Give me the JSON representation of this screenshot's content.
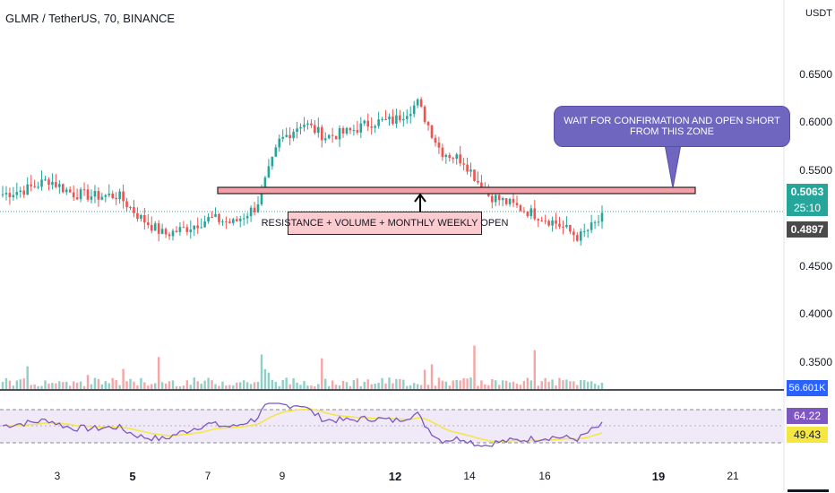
{
  "header": {
    "symbol_title": "GLMR / TetherUS, 70, BINANCE"
  },
  "price_axis": {
    "currency": "USDT",
    "labels": [
      "0.6500",
      "0.6000",
      "0.5500",
      "0.4500",
      "0.4000",
      "0.3500"
    ],
    "current_price": "0.5063",
    "countdown": "25:10",
    "previous_price": "0.4897",
    "volume_badge": "56.601K",
    "colors": {
      "current": "#26a69a",
      "previous": "#4a4a4a",
      "volume": "#2962ff"
    }
  },
  "rsi": {
    "value": "64.22",
    "ma_value": "49.43",
    "colors": {
      "rsi": "#7e57c2",
      "ma": "#f5e642"
    }
  },
  "annotations": {
    "callout_text": "WAIT FOR CONFIRMATION AND OPEN SHORT FROM THIS ZONE",
    "resistance_label": "RESISTANCE + VOLUME + MONTHLY WEEKLY OPEN"
  },
  "time_axis": {
    "labels": [
      "3",
      "5",
      "7",
      "9",
      "12",
      "14",
      "16",
      "19",
      "21"
    ]
  },
  "chart_data": {
    "type": "candlestick",
    "title": "GLMR / TetherUS, 70, BINANCE",
    "ylabel": "USDT",
    "ylim": [
      0.35,
      0.67
    ],
    "x_ticks": [
      "3",
      "5",
      "7",
      "9",
      "12",
      "14",
      "16",
      "19",
      "21"
    ],
    "close_series": [
      {
        "x": "2",
        "y": 0.525
      },
      {
        "x": "3",
        "y": 0.53
      },
      {
        "x": "3",
        "y": 0.54
      },
      {
        "x": "4",
        "y": 0.526
      },
      {
        "x": "5",
        "y": 0.523
      },
      {
        "x": "6",
        "y": 0.524
      },
      {
        "x": "7",
        "y": 0.5
      },
      {
        "x": "7",
        "y": 0.483
      },
      {
        "x": "8",
        "y": 0.49
      },
      {
        "x": "8",
        "y": 0.5
      },
      {
        "x": "9",
        "y": 0.495
      },
      {
        "x": "9",
        "y": 0.512
      },
      {
        "x": "10",
        "y": 0.58
      },
      {
        "x": "10",
        "y": 0.6
      },
      {
        "x": "11",
        "y": 0.585
      },
      {
        "x": "11",
        "y": 0.59
      },
      {
        "x": "12",
        "y": 0.6
      },
      {
        "x": "12",
        "y": 0.602
      },
      {
        "x": "13",
        "y": 0.62
      },
      {
        "x": "13",
        "y": 0.57
      },
      {
        "x": "13",
        "y": 0.56
      },
      {
        "x": "14",
        "y": 0.525
      },
      {
        "x": "14",
        "y": 0.515
      },
      {
        "x": "15",
        "y": 0.505
      },
      {
        "x": "16",
        "y": 0.495
      },
      {
        "x": "17",
        "y": 0.48
      },
      {
        "x": "17",
        "y": 0.5
      }
    ],
    "resistance_level": 0.527,
    "current_price": 0.5063,
    "volume_last": "56.601K",
    "rsi": {
      "value": 64.22,
      "ma": 49.43
    }
  }
}
